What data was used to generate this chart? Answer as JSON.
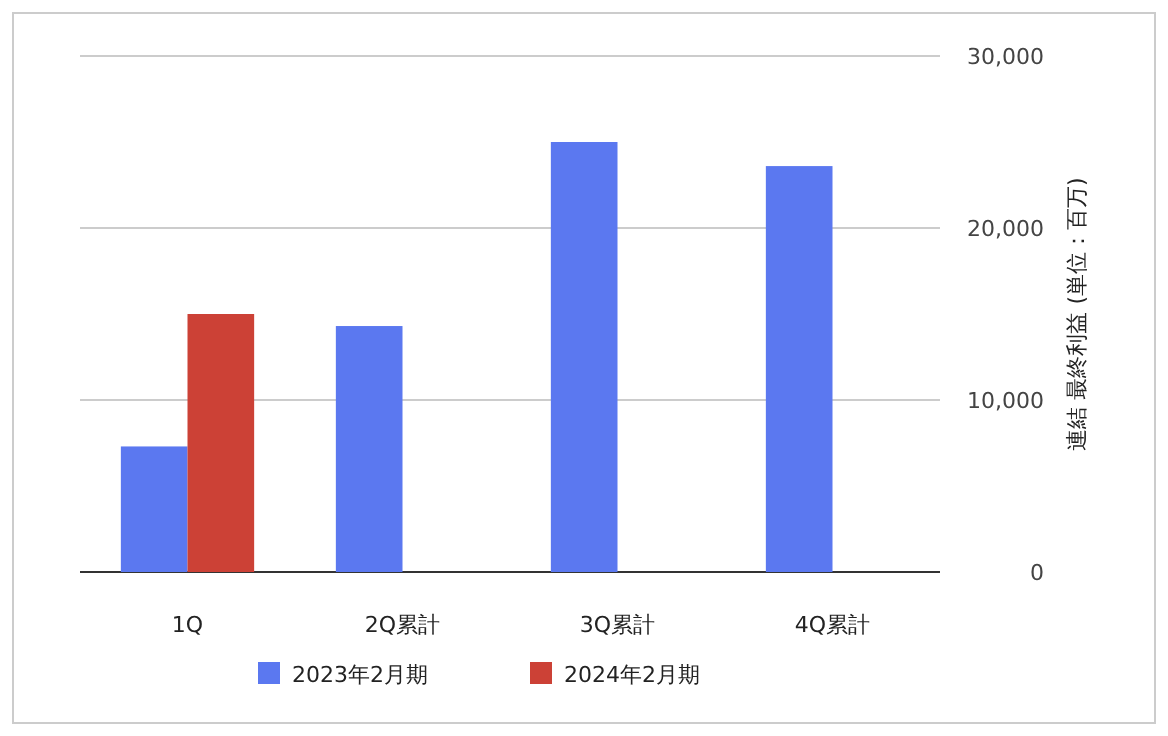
{
  "chart_data": {
    "type": "bar",
    "categories": [
      "1Q",
      "2Q累計",
      "3Q累計",
      "4Q累計"
    ],
    "series": [
      {
        "name": "2023年2月期",
        "color": "#5b78f0",
        "values": [
          7300,
          14300,
          25000,
          23600
        ]
      },
      {
        "name": "2024年2月期",
        "color": "#cc4136",
        "values": [
          15000,
          null,
          null,
          null
        ]
      }
    ],
    "ylabel": "連結 最終利益 (単位：百万)",
    "ylim": [
      0,
      30000
    ],
    "yticks": [
      0,
      {
        "value": 10000,
        "label": "10,000"
      },
      {
        "value": 20000,
        "label": "20,000"
      },
      {
        "value": 30000,
        "label": "30,000"
      }
    ],
    "grid": "y",
    "legend": "bottom"
  }
}
